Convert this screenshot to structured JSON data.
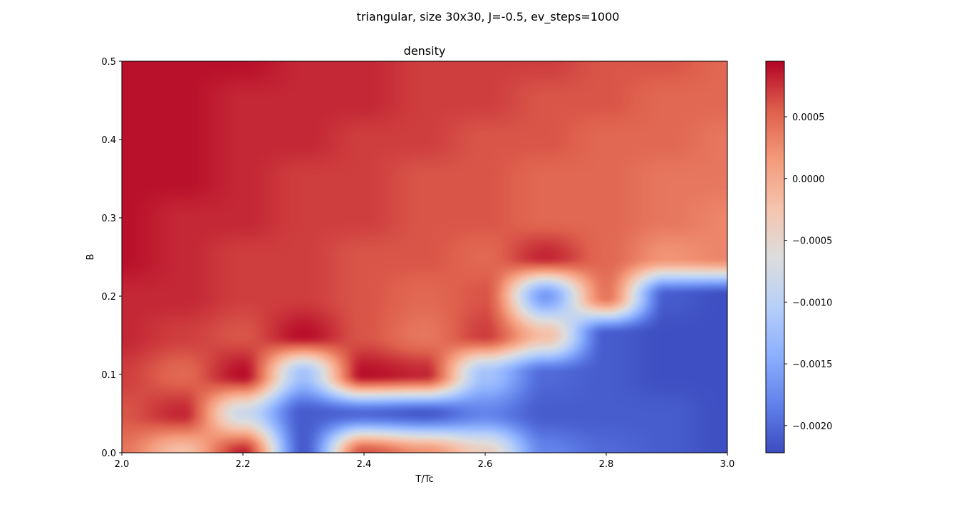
{
  "figure": {
    "suptitle": "triangular, size 30x30, J=-0.5, ev_steps=1000"
  },
  "chart_data": {
    "type": "heatmap",
    "title": "density",
    "xlabel": "T/Tc",
    "ylabel": "B",
    "xlim": [
      2.0,
      3.0
    ],
    "ylim": [
      0.0,
      0.5
    ],
    "x_ticks": [
      "2.0",
      "2.2",
      "2.4",
      "2.6",
      "2.8",
      "3.0"
    ],
    "y_ticks": [
      "0.0",
      "0.1",
      "0.2",
      "0.3",
      "0.4",
      "0.5"
    ],
    "colormap": "coolwarm",
    "colorbar": {
      "vmin": -0.00222,
      "vmax": 0.00095,
      "ticks": [
        "0.0005",
        "0.0000",
        "−0.0005",
        "−0.0010",
        "−0.0015",
        "−0.0020"
      ],
      "tick_values": [
        0.0005,
        0.0,
        -0.0005,
        -0.001,
        -0.0015,
        -0.002
      ]
    },
    "grid": false,
    "x_values": [
      2.0,
      2.1,
      2.2,
      2.3,
      2.4,
      2.5,
      2.6,
      2.7,
      2.8,
      2.9,
      3.0
    ],
    "y_values": [
      0.0,
      0.05,
      0.1,
      0.15,
      0.2,
      0.25,
      0.3,
      0.35,
      0.4,
      0.45,
      0.5
    ],
    "z": [
      [
        0.0004,
        -0.0002,
        0.0008,
        -0.0021,
        0.0006,
        0.0002,
        -0.0004,
        -0.0018,
        -0.002,
        -0.0021,
        -0.0022
      ],
      [
        0.0006,
        0.0008,
        -0.0008,
        -0.0021,
        -0.002,
        -0.0021,
        -0.0018,
        -0.0021,
        -0.0021,
        -0.0021,
        -0.0022
      ],
      [
        0.0007,
        0.0005,
        0.0009,
        -0.0012,
        0.0009,
        0.0008,
        -0.0012,
        -0.002,
        -0.0021,
        -0.0022,
        -0.0022
      ],
      [
        0.0008,
        0.0007,
        0.0006,
        0.0009,
        0.0006,
        0.0004,
        0.0007,
        -0.0002,
        -0.0021,
        -0.0022,
        -0.0022
      ],
      [
        0.0008,
        0.0008,
        0.0007,
        0.0007,
        0.0006,
        0.0005,
        0.0006,
        -0.0016,
        0.0004,
        -0.0021,
        -0.0022
      ],
      [
        0.0009,
        0.0008,
        0.0007,
        0.0007,
        0.0006,
        0.0006,
        0.0005,
        0.0008,
        0.0005,
        0.0002,
        0.0003
      ],
      [
        0.0009,
        0.0008,
        0.0008,
        0.0007,
        0.0007,
        0.0006,
        0.0006,
        0.0005,
        0.0005,
        0.0004,
        0.0003
      ],
      [
        0.0009,
        0.0009,
        0.0008,
        0.0007,
        0.0007,
        0.0006,
        0.0006,
        0.0005,
        0.0005,
        0.0004,
        0.0004
      ],
      [
        0.0009,
        0.0009,
        0.0008,
        0.0008,
        0.0007,
        0.0007,
        0.0006,
        0.0006,
        0.0005,
        0.0005,
        0.0004
      ],
      [
        0.0009,
        0.0009,
        0.0008,
        0.0008,
        0.0008,
        0.0007,
        0.0007,
        0.0006,
        0.0006,
        0.0005,
        0.0005
      ],
      [
        0.0009,
        0.0009,
        0.0009,
        0.0008,
        0.0008,
        0.0007,
        0.0007,
        0.0007,
        0.0006,
        0.0006,
        0.0005
      ]
    ]
  }
}
